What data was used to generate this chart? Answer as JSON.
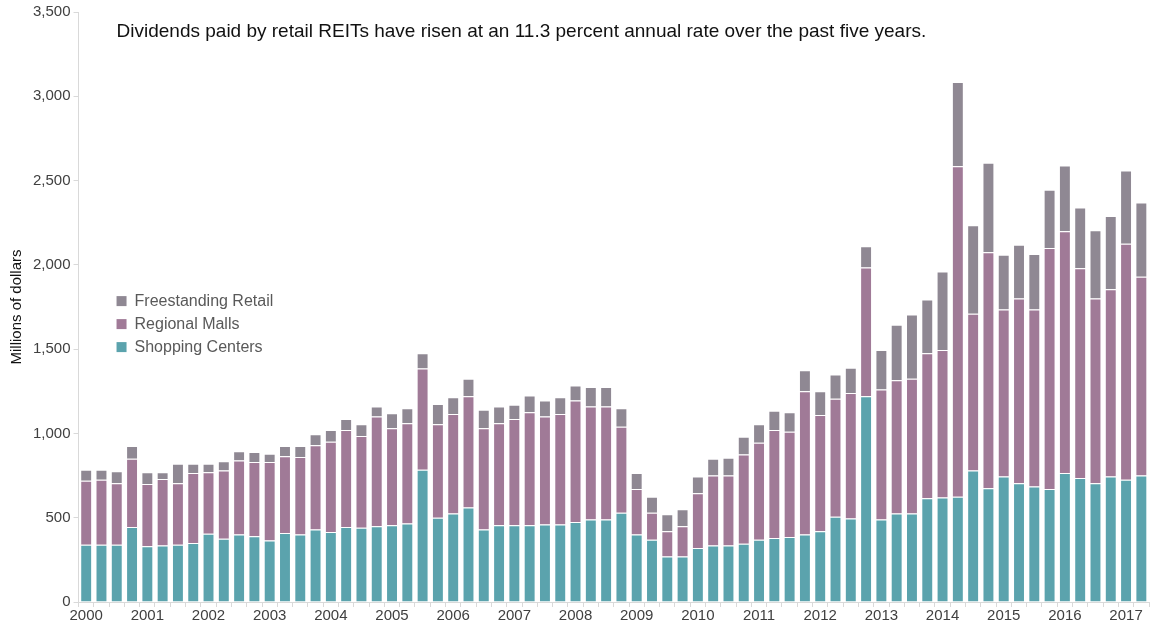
{
  "chart_data": {
    "type": "bar",
    "stacked": true,
    "title": "Dividends paid by retail REITs have risen at an 11.3 percent annual rate over the past five years.",
    "ylabel": "Millions of dollars",
    "categories": [
      "2000",
      null,
      null,
      null,
      "2001",
      null,
      null,
      null,
      "2002",
      null,
      null,
      null,
      "2003",
      null,
      null,
      null,
      "2004",
      null,
      null,
      null,
      "2005",
      null,
      null,
      null,
      "2006",
      null,
      null,
      null,
      "2007",
      null,
      null,
      null,
      "2008",
      null,
      null,
      null,
      "2009",
      null,
      null,
      null,
      "2010",
      null,
      null,
      null,
      "2011",
      null,
      null,
      null,
      "2012",
      null,
      null,
      null,
      "2013",
      null,
      null,
      null,
      "2014",
      null,
      null,
      null,
      "2015",
      null,
      null,
      null,
      "2016",
      null,
      null,
      null,
      "2017",
      null
    ],
    "series": [
      {
        "name": "Shopping Centers",
        "color": "#5ba3ad",
        "values": [
          340,
          340,
          340,
          445,
          330,
          335,
          340,
          350,
          405,
          375,
          400,
          390,
          365,
          410,
          400,
          430,
          415,
          445,
          440,
          450,
          455,
          465,
          785,
          500,
          525,
          560,
          430,
          455,
          455,
          455,
          460,
          460,
          475,
          490,
          490,
          530,
          400,
          370,
          270,
          270,
          320,
          335,
          335,
          345,
          370,
          380,
          385,
          400,
          420,
          505,
          495,
          1220,
          490,
          525,
          525,
          615,
          620,
          625,
          780,
          675,
          745,
          705,
          685,
          670,
          765,
          735,
          705,
          745,
          725,
          750
        ]
      },
      {
        "name": "Regional Malls",
        "color": "#a07a97",
        "values": [
          380,
          385,
          365,
          405,
          370,
          395,
          365,
          415,
          365,
          405,
          440,
          440,
          465,
          455,
          460,
          500,
          535,
          575,
          545,
          650,
          575,
          595,
          600,
          555,
          590,
          660,
          600,
          605,
          630,
          670,
          640,
          655,
          720,
          670,
          670,
          510,
          270,
          160,
          150,
          180,
          325,
          415,
          415,
          530,
          575,
          640,
          625,
          850,
          690,
          700,
          745,
          765,
          770,
          790,
          800,
          860,
          875,
          1960,
          930,
          1400,
          990,
          1095,
          1050,
          1430,
          1435,
          1245,
          1095,
          1110,
          1400,
          1180
        ]
      },
      {
        "name": "Freestanding Retail",
        "color": "#8f8893",
        "values": [
          65,
          60,
          70,
          75,
          70,
          40,
          115,
          55,
          50,
          55,
          55,
          60,
          50,
          60,
          65,
          65,
          70,
          65,
          70,
          60,
          90,
          90,
          90,
          120,
          100,
          105,
          110,
          100,
          85,
          100,
          95,
          100,
          90,
          115,
          115,
          110,
          95,
          95,
          100,
          100,
          100,
          100,
          105,
          105,
          110,
          115,
          115,
          125,
          140,
          145,
          150,
          125,
          235,
          330,
          380,
          320,
          465,
          500,
          525,
          530,
          325,
          320,
          330,
          345,
          390,
          360,
          405,
          435,
          435,
          440
        ]
      }
    ],
    "ylim": [
      0,
      3500
    ],
    "yticks": [
      0,
      {
        "value": 500,
        "label": "500"
      },
      {
        "value": 1000,
        "label": "1,000"
      },
      {
        "value": 1500,
        "label": "1,500"
      },
      {
        "value": 2000,
        "label": "2,000"
      },
      {
        "value": 2500,
        "label": "2,500"
      },
      {
        "value": 3000,
        "label": "3,000"
      },
      {
        "value": 3500,
        "label": "3,500"
      }
    ],
    "grid": false,
    "legend": "left"
  }
}
